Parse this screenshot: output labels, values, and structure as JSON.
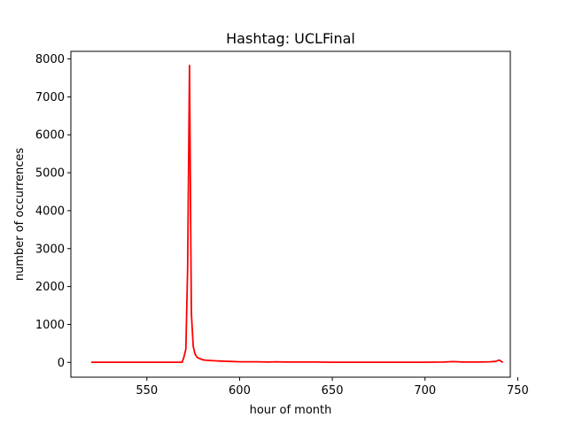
{
  "chart_data": {
    "type": "line",
    "title": "Hashtag: UCLFinal",
    "xlabel": "hour of month",
    "ylabel": "number of occurrences",
    "xlim": [
      509,
      746
    ],
    "ylim": [
      -390,
      8200
    ],
    "xticks": [
      550,
      600,
      650,
      700,
      750
    ],
    "yticks": [
      0,
      1000,
      2000,
      3000,
      4000,
      5000,
      6000,
      7000,
      8000
    ],
    "grid": false,
    "series": [
      {
        "color": "#ff0000",
        "x": [
          520,
          530,
          540,
          550,
          560,
          565,
          569,
          570,
          571,
          572,
          573,
          574,
          575,
          576,
          577,
          578,
          579,
          580,
          582,
          584,
          586,
          588,
          590,
          592,
          595,
          600,
          605,
          610,
          615,
          620,
          625,
          630,
          640,
          650,
          660,
          670,
          680,
          690,
          700,
          710,
          715,
          718,
          720,
          725,
          730,
          735,
          738,
          740,
          741,
          742
        ],
        "y": [
          5,
          5,
          5,
          5,
          5,
          5,
          5,
          150,
          350,
          2500,
          7830,
          1300,
          420,
          220,
          140,
          110,
          90,
          70,
          55,
          50,
          45,
          40,
          35,
          30,
          25,
          15,
          15,
          15,
          10,
          15,
          10,
          10,
          8,
          5,
          5,
          5,
          5,
          5,
          5,
          10,
          20,
          15,
          10,
          10,
          8,
          15,
          25,
          60,
          30,
          0
        ]
      }
    ]
  }
}
